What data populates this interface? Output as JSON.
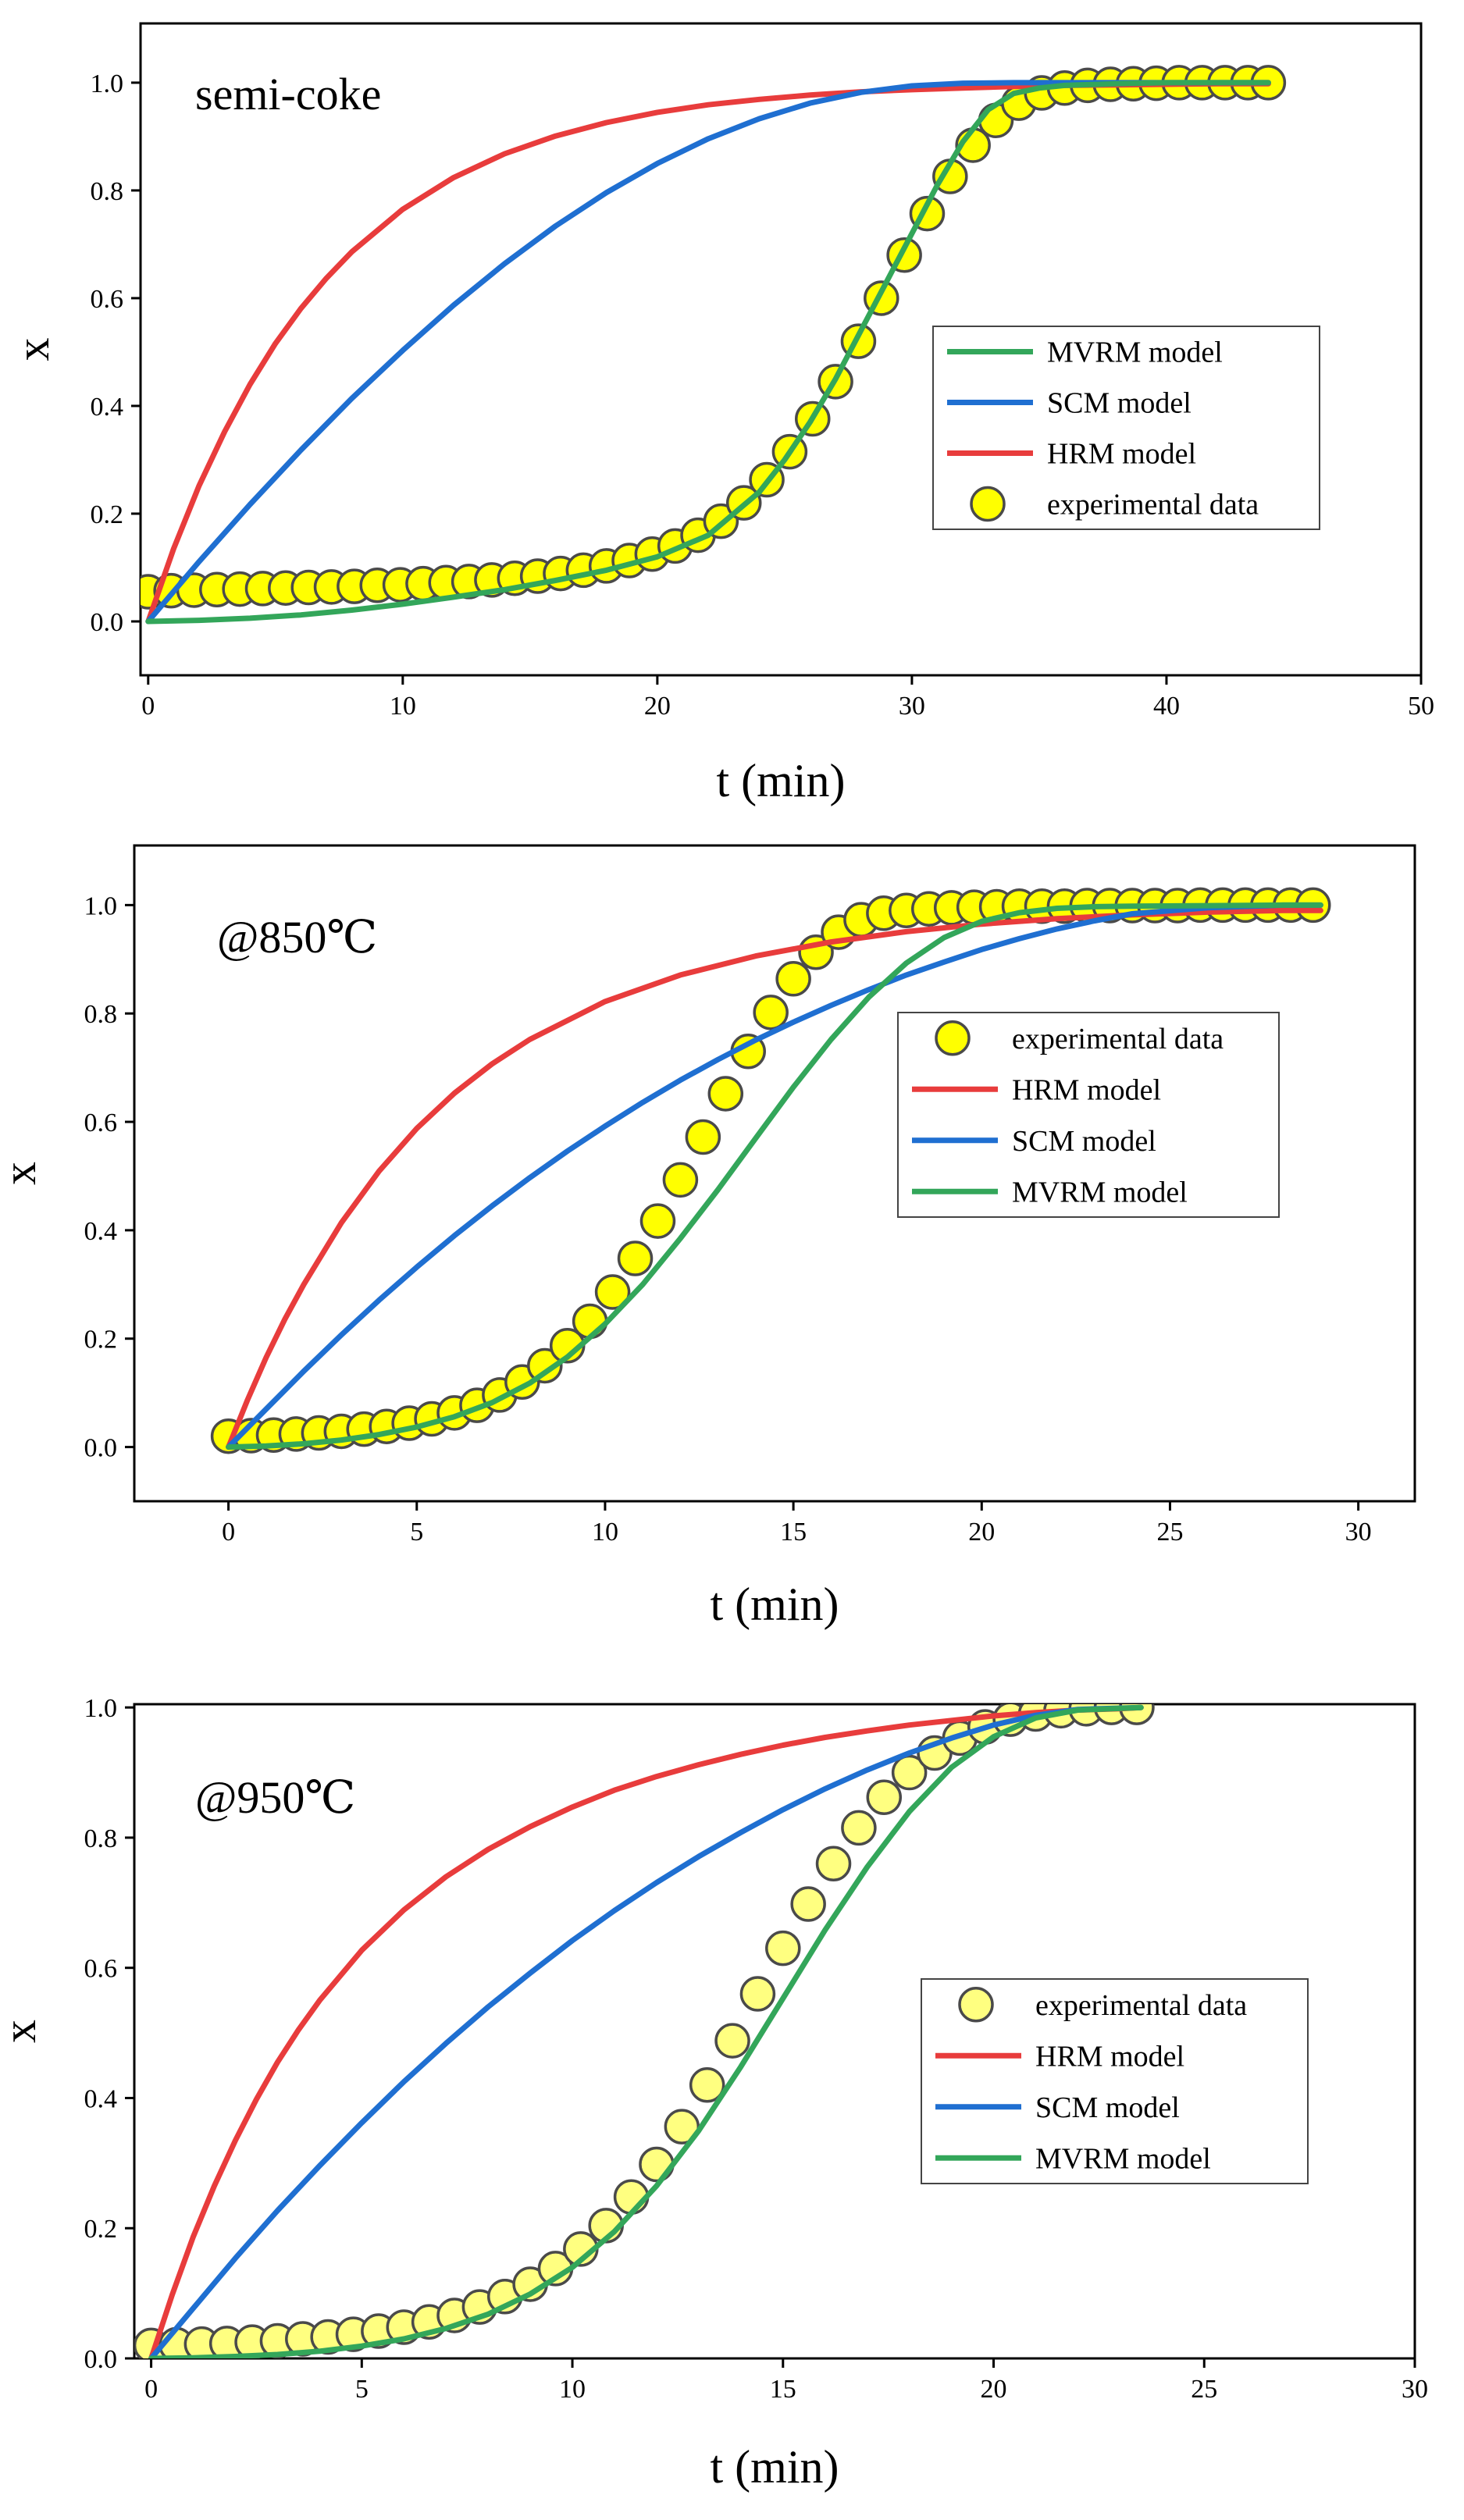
{
  "chart_data": [
    {
      "type": "line",
      "panel_label": "semi-coke",
      "xlabel": "t (min)",
      "ylabel": "x",
      "xlim": [
        -0.3,
        50
      ],
      "ylim": [
        -0.1,
        1.11
      ],
      "xticks": [
        0,
        10,
        20,
        30,
        40,
        50
      ],
      "yticks": [
        0.0,
        0.2,
        0.4,
        0.6,
        0.8,
        1.0
      ],
      "grid": false,
      "legend": {
        "position": "center-right",
        "entries": [
          "MVRM model",
          "SCM model",
          "HRM model",
          "experimental data"
        ]
      },
      "series": [
        {
          "name": "MVRM model",
          "kind": "line",
          "color": "#33a65a",
          "x": [
            0,
            2,
            4,
            6,
            8,
            10,
            12,
            14,
            16,
            18,
            20,
            22,
            24,
            25,
            26,
            27,
            28,
            29,
            30,
            31,
            32,
            33,
            34,
            35,
            36,
            38,
            40,
            42,
            44
          ],
          "y": [
            0.0,
            0.002,
            0.006,
            0.012,
            0.021,
            0.032,
            0.045,
            0.059,
            0.076,
            0.095,
            0.12,
            0.16,
            0.24,
            0.3,
            0.37,
            0.45,
            0.54,
            0.63,
            0.72,
            0.81,
            0.89,
            0.95,
            0.98,
            0.99,
            0.995,
            0.998,
            1.0,
            1.0,
            1.0
          ]
        },
        {
          "name": "SCM model",
          "kind": "line",
          "color": "#1f6fd1",
          "x": [
            0,
            2,
            4,
            6,
            8,
            10,
            12,
            14,
            16,
            18,
            20,
            22,
            24,
            26,
            28,
            30,
            32,
            34,
            36,
            38,
            40,
            42,
            44
          ],
          "y": [
            0.0,
            0.111,
            0.217,
            0.318,
            0.414,
            0.503,
            0.587,
            0.664,
            0.734,
            0.796,
            0.85,
            0.896,
            0.933,
            0.962,
            0.982,
            0.994,
            0.999,
            1.0,
            1.0,
            1.0,
            1.0,
            1.0,
            1.0
          ]
        },
        {
          "name": "HRM model",
          "kind": "line",
          "color": "#e83c3c",
          "x": [
            0,
            1,
            2,
            3,
            4,
            5,
            6,
            7,
            8,
            10,
            12,
            14,
            16,
            18,
            20,
            22,
            24,
            26,
            28,
            30,
            32,
            34,
            36,
            38,
            40,
            42,
            44
          ],
          "y": [
            0.0,
            0.135,
            0.252,
            0.352,
            0.44,
            0.516,
            0.581,
            0.637,
            0.686,
            0.765,
            0.824,
            0.868,
            0.901,
            0.926,
            0.945,
            0.959,
            0.969,
            0.977,
            0.983,
            0.987,
            0.99,
            0.993,
            0.995,
            0.996,
            0.997,
            0.998,
            0.998
          ]
        },
        {
          "name": "experimental data",
          "kind": "scatter",
          "color": "#ffff00",
          "x": [
            0,
            0.9,
            1.8,
            2.7,
            3.6,
            4.5,
            5.4,
            6.3,
            7.2,
            8.1,
            9,
            9.9,
            10.8,
            11.7,
            12.6,
            13.5,
            14.4,
            15.3,
            16.2,
            17.1,
            18,
            18.9,
            19.8,
            20.7,
            21.6,
            22.5,
            23.4,
            24.3,
            25.2,
            26.1,
            27,
            27.9,
            28.8,
            29.7,
            30.6,
            31.5,
            32.4,
            33.3,
            34.2,
            35.1,
            36,
            36.9,
            37.8,
            38.7,
            39.6,
            40.5,
            41.4,
            42.3,
            43.2,
            44
          ],
          "y": [
            0.055,
            0.057,
            0.058,
            0.059,
            0.06,
            0.061,
            0.062,
            0.063,
            0.064,
            0.065,
            0.067,
            0.068,
            0.07,
            0.072,
            0.074,
            0.077,
            0.08,
            0.084,
            0.089,
            0.095,
            0.103,
            0.113,
            0.125,
            0.14,
            0.16,
            0.186,
            0.22,
            0.263,
            0.315,
            0.376,
            0.445,
            0.52,
            0.6,
            0.68,
            0.757,
            0.826,
            0.884,
            0.93,
            0.962,
            0.981,
            0.99,
            0.995,
            0.997,
            0.998,
            0.999,
            1.0,
            1.0,
            1.0,
            1.0,
            1.0
          ]
        }
      ]
    },
    {
      "type": "line",
      "panel_label": "@850℃",
      "xlabel": "t (min)",
      "ylabel": "x",
      "xlim": [
        -2.5,
        31.5
      ],
      "ylim": [
        -0.1,
        1.11
      ],
      "xticks": [
        0,
        5,
        10,
        15,
        20,
        25,
        30
      ],
      "yticks": [
        0.0,
        0.2,
        0.4,
        0.6,
        0.8,
        1.0
      ],
      "grid": false,
      "legend": {
        "position": "center-right",
        "entries": [
          "experimental data",
          "HRM model",
          "SCM model",
          "MVRM model"
        ]
      },
      "series": [
        {
          "name": "experimental data",
          "kind": "scatter",
          "color": "#ffff00",
          "x": [
            0,
            0.6,
            1.2,
            1.8,
            2.4,
            3,
            3.6,
            4.2,
            4.8,
            5.4,
            6,
            6.6,
            7.2,
            7.8,
            8.4,
            9,
            9.6,
            10.2,
            10.8,
            11.4,
            12,
            12.6,
            13.2,
            13.8,
            14.4,
            15,
            15.6,
            16.2,
            16.8,
            17.4,
            18,
            18.6,
            19.2,
            19.8,
            20.4,
            21,
            21.6,
            22.2,
            22.8,
            23.4,
            24,
            24.6,
            25.2,
            25.8,
            26.4,
            27,
            27.6,
            28.2,
            28.8
          ],
          "y": [
            0.02,
            0.021,
            0.022,
            0.024,
            0.026,
            0.029,
            0.033,
            0.038,
            0.044,
            0.052,
            0.063,
            0.077,
            0.096,
            0.12,
            0.15,
            0.187,
            0.232,
            0.286,
            0.348,
            0.417,
            0.493,
            0.572,
            0.652,
            0.73,
            0.802,
            0.864,
            0.913,
            0.95,
            0.973,
            0.985,
            0.99,
            0.993,
            0.995,
            0.996,
            0.997,
            0.998,
            0.998,
            0.998,
            0.999,
            0.999,
            0.999,
            0.999,
            0.999,
            1.0,
            1.0,
            1.0,
            1.0,
            1.0,
            1.0
          ]
        },
        {
          "name": "HRM model",
          "kind": "line",
          "color": "#e83c3c",
          "x": [
            0,
            0.5,
            1,
            1.5,
            2,
            3,
            4,
            5,
            6,
            7,
            8,
            10,
            12,
            14,
            16,
            18,
            20,
            22,
            24,
            26,
            28,
            29
          ],
          "y": [
            0.0,
            0.086,
            0.165,
            0.236,
            0.3,
            0.414,
            0.509,
            0.588,
            0.653,
            0.707,
            0.752,
            0.822,
            0.871,
            0.906,
            0.932,
            0.951,
            0.965,
            0.975,
            0.982,
            0.987,
            0.99,
            0.99
          ]
        },
        {
          "name": "SCM model",
          "kind": "line",
          "color": "#1f6fd1",
          "x": [
            0,
            1,
            2,
            3,
            4,
            5,
            6,
            7,
            8,
            9,
            10,
            11,
            12,
            13,
            14,
            15,
            16,
            17,
            18,
            19,
            20,
            21,
            22,
            23,
            24,
            26,
            28,
            29
          ],
          "y": [
            0.0,
            0.07,
            0.14,
            0.207,
            0.271,
            0.332,
            0.39,
            0.445,
            0.497,
            0.546,
            0.592,
            0.636,
            0.677,
            0.715,
            0.751,
            0.784,
            0.815,
            0.844,
            0.871,
            0.895,
            0.918,
            0.938,
            0.956,
            0.971,
            0.984,
            0.995,
            1.0,
            1.0
          ]
        },
        {
          "name": "MVRM model",
          "kind": "line",
          "color": "#33a65a",
          "x": [
            0,
            1,
            2,
            3,
            4,
            5,
            6,
            7,
            8,
            9,
            10,
            11,
            12,
            13,
            14,
            15,
            16,
            17,
            18,
            19,
            20,
            21,
            22,
            23,
            24,
            26,
            28,
            29
          ],
          "y": [
            0.0,
            0.002,
            0.006,
            0.013,
            0.023,
            0.037,
            0.056,
            0.082,
            0.118,
            0.166,
            0.227,
            0.3,
            0.385,
            0.475,
            0.57,
            0.664,
            0.752,
            0.83,
            0.893,
            0.94,
            0.97,
            0.986,
            0.994,
            0.997,
            0.998,
            0.999,
            1.0,
            1.0
          ]
        }
      ]
    },
    {
      "type": "line",
      "panel_label": "@950℃",
      "xlabel": "t (min)",
      "ylabel": "x",
      "xlim": [
        -0.4,
        30
      ],
      "ylim": [
        0.0,
        1.005
      ],
      "xticks": [
        0,
        5,
        10,
        15,
        20,
        25,
        30
      ],
      "yticks": [
        0.0,
        0.2,
        0.4,
        0.6,
        0.8,
        1.0
      ],
      "grid": false,
      "legend": {
        "position": "center-right",
        "entries": [
          "experimental data",
          "HRM model",
          "SCM model",
          "MVRM model"
        ]
      },
      "series": [
        {
          "name": "experimental data",
          "kind": "scatter",
          "color": "#ffff80",
          "x": [
            0,
            0.6,
            1.2,
            1.8,
            2.4,
            3,
            3.6,
            4.2,
            4.8,
            5.4,
            6,
            6.6,
            7.2,
            7.8,
            8.4,
            9,
            9.6,
            10.2,
            10.8,
            11.4,
            12,
            12.6,
            13.2,
            13.8,
            14.4,
            15,
            15.6,
            16.2,
            16.8,
            17.4,
            18,
            18.6,
            19.2,
            19.8,
            20.4,
            21,
            21.6,
            22.2,
            22.8,
            23.4
          ],
          "y": [
            0.02,
            0.021,
            0.022,
            0.023,
            0.025,
            0.027,
            0.03,
            0.033,
            0.037,
            0.042,
            0.048,
            0.056,
            0.066,
            0.079,
            0.095,
            0.114,
            0.138,
            0.168,
            0.204,
            0.248,
            0.298,
            0.356,
            0.42,
            0.488,
            0.56,
            0.63,
            0.698,
            0.76,
            0.815,
            0.862,
            0.9,
            0.93,
            0.953,
            0.97,
            0.982,
            0.99,
            0.995,
            0.998,
            1.0,
            1.0
          ]
        },
        {
          "name": "HRM model",
          "kind": "line",
          "color": "#e83c3c",
          "x": [
            0,
            0.5,
            1,
            1.5,
            2,
            2.5,
            3,
            3.5,
            4,
            5,
            6,
            7,
            8,
            9,
            10,
            11,
            12,
            13,
            14,
            15,
            16,
            17,
            18,
            19,
            20,
            21,
            22,
            23,
            23.5
          ],
          "y": [
            0.0,
            0.098,
            0.187,
            0.265,
            0.335,
            0.398,
            0.455,
            0.505,
            0.55,
            0.627,
            0.689,
            0.74,
            0.782,
            0.817,
            0.847,
            0.873,
            0.894,
            0.912,
            0.928,
            0.942,
            0.954,
            0.964,
            0.973,
            0.98,
            0.987,
            0.992,
            0.996,
            0.998,
            1.0
          ]
        },
        {
          "name": "SCM model",
          "kind": "line",
          "color": "#1f6fd1",
          "x": [
            0,
            1,
            2,
            3,
            4,
            5,
            6,
            7,
            8,
            9,
            10,
            11,
            12,
            13,
            14,
            15,
            16,
            17,
            18,
            19,
            20,
            21,
            22,
            23.5
          ],
          "y": [
            0.0,
            0.077,
            0.154,
            0.227,
            0.296,
            0.362,
            0.425,
            0.484,
            0.54,
            0.592,
            0.642,
            0.688,
            0.731,
            0.771,
            0.808,
            0.843,
            0.875,
            0.904,
            0.93,
            0.953,
            0.973,
            0.988,
            0.997,
            1.0
          ]
        },
        {
          "name": "MVRM model",
          "kind": "line",
          "color": "#33a65a",
          "x": [
            0,
            1,
            2,
            3,
            4,
            5,
            6,
            7,
            8,
            9,
            10,
            11,
            12,
            13,
            14,
            15,
            16,
            17,
            18,
            19,
            20,
            21,
            22,
            23.5
          ],
          "y": [
            0.0,
            0.001,
            0.003,
            0.006,
            0.011,
            0.019,
            0.03,
            0.046,
            0.068,
            0.099,
            0.14,
            0.195,
            0.265,
            0.35,
            0.448,
            0.553,
            0.658,
            0.755,
            0.84,
            0.908,
            0.955,
            0.984,
            0.996,
            1.0
          ]
        }
      ]
    }
  ]
}
